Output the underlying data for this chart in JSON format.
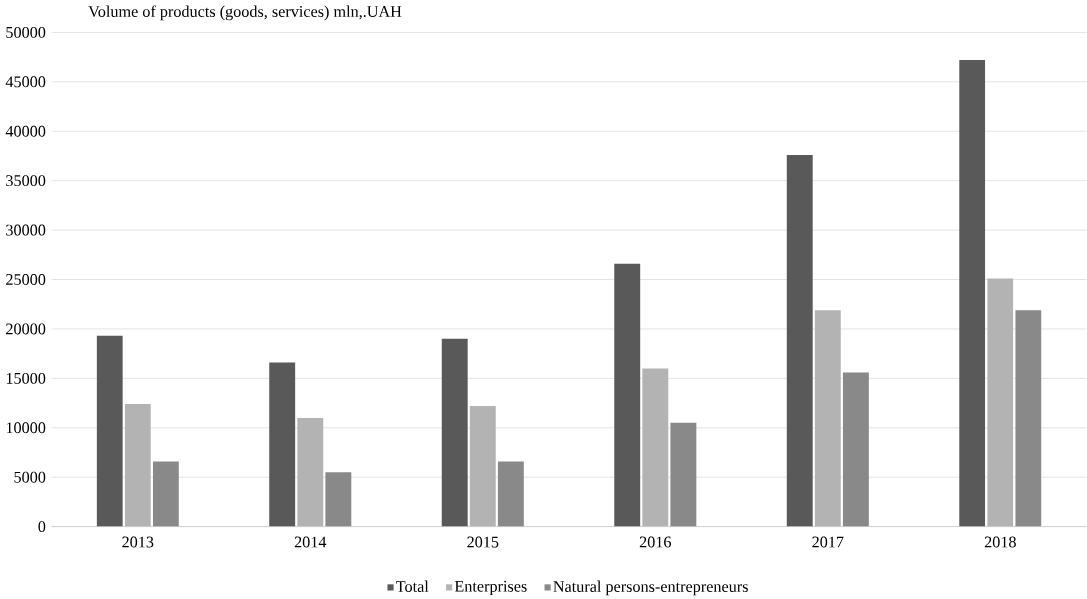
{
  "chart_data": {
    "type": "bar",
    "title": "Volume of products (goods, services) mln,.UAH",
    "categories": [
      "2013",
      "2014",
      "2015",
      "2016",
      "2017",
      "2018"
    ],
    "series": [
      {
        "name": "Total",
        "color": "#595959",
        "values": [
          19300,
          16600,
          19000,
          26600,
          37600,
          47200
        ]
      },
      {
        "name": "Enterprises",
        "color": "#b3b3b3",
        "values": [
          12400,
          11000,
          12200,
          16000,
          21900,
          25100
        ]
      },
      {
        "name": "Natural  persons-entrepreneurs",
        "color": "#898989",
        "values": [
          6600,
          5500,
          6600,
          10500,
          15600,
          21900
        ]
      }
    ],
    "ylim": [
      0,
      50000
    ],
    "yticks": [
      0,
      5000,
      10000,
      15000,
      20000,
      25000,
      30000,
      35000,
      40000,
      45000,
      50000
    ],
    "grid": "y",
    "legend": "bottom"
  }
}
